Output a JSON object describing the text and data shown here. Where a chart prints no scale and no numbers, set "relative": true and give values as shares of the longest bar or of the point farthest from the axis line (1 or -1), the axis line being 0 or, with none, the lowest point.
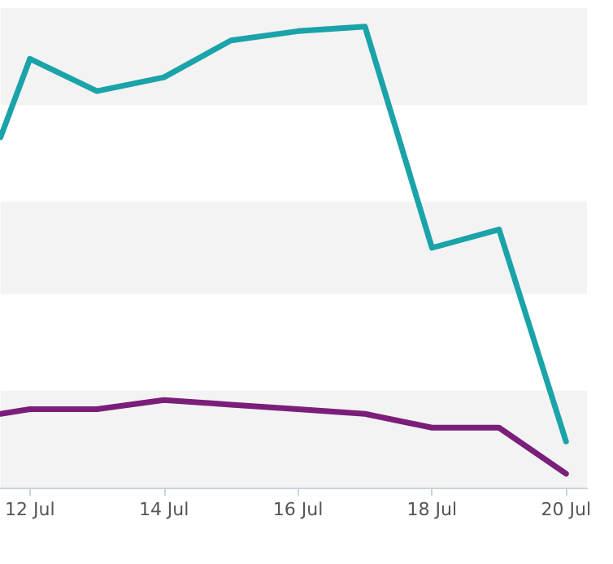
{
  "chart_data": {
    "type": "line",
    "relative": true,
    "x": [
      "--07-11T13:30",
      "--07-12",
      "--07-13",
      "--07-14",
      "--07-15",
      "--07-16",
      "--07-17",
      "--07-18",
      "--07-19",
      "--07-20"
    ],
    "xlim": [
      "--07-11T13:30",
      "--07-20T07:30"
    ],
    "xticks": [
      {
        "value": "--07-12",
        "label": "12 Jul"
      },
      {
        "value": "--07-14",
        "label": "14 Jul"
      },
      {
        "value": "--07-16",
        "label": "16 Jul"
      },
      {
        "value": "--07-18",
        "label": "18 Jul"
      },
      {
        "value": "--07-20",
        "label": "20 Jul"
      }
    ],
    "series": [
      {
        "color": "#1aa3a8",
        "values": [
          0.76,
          0.93,
          0.86,
          0.89,
          0.97,
          0.99,
          1,
          0.52,
          0.56,
          0.1
        ]
      },
      {
        "color": "#7b1e7a",
        "values": [
          0.16,
          0.17,
          0.17,
          0.19,
          0.18,
          0.17,
          0.16,
          0.13,
          0.13,
          0.03
        ]
      }
    ],
    "bands": [
      {
        "axis": "y",
        "from": 0,
        "to": 0.21,
        "color": "#f3f3f3"
      },
      {
        "axis": "y",
        "from": 0.42,
        "to": 0.62,
        "color": "#f3f3f3"
      },
      {
        "axis": "y",
        "from": 0.83,
        "to": 1.04,
        "color": "#f3f3f3"
      }
    ],
    "marker": "none",
    "line_style": "solid"
  }
}
